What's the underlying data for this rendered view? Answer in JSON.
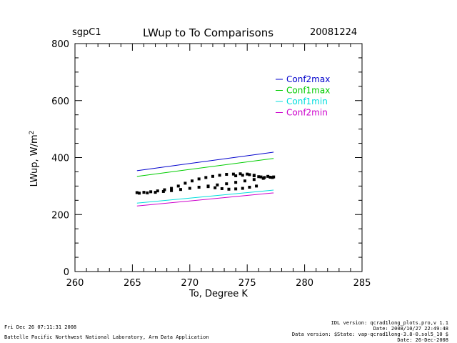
{
  "header": {
    "site": "sgpC1",
    "title": "LWup to To Comparisons",
    "date": "20081224"
  },
  "footer": {
    "run_timestamp": "Fri Dec 26 07:11:31 2008",
    "organization": "Battelle Pacific Northwest National Laboratory, Arm Data Application",
    "idl_version": "IDL version: qcrad1long_plots.pro,v 1.1",
    "idl_date": "Date: 2008/10/27 22:49:48",
    "data_version": "Data version: $State: vap-qcrad1long-3.8-0.sol5_10 $",
    "data_date": "Date: 26-Dec-2008"
  },
  "colors": {
    "Conf2max": "#0000cc",
    "Conf1max": "#00cc00",
    "Conf1min": "#00dddd",
    "Conf2min": "#cc00cc",
    "observations": "#000000"
  },
  "chart_data": {
    "type": "line",
    "title": "LWup to To Comparisons",
    "xlabel": "To, Degree K",
    "ylabel_main": "LWup, W/m",
    "ylabel_sup": "2",
    "xlim": [
      260,
      285
    ],
    "ylim": [
      0,
      800
    ],
    "x_ticks": [
      260,
      265,
      270,
      275,
      280,
      285
    ],
    "y_ticks": [
      0,
      200,
      400,
      600,
      800
    ],
    "legend_position": "top-right",
    "series": [
      {
        "name": "Conf2max",
        "x": [
          265.4,
          277.3
        ],
        "y": [
          354,
          419
        ]
      },
      {
        "name": "Conf1max",
        "x": [
          265.4,
          277.3
        ],
        "y": [
          334,
          397
        ]
      },
      {
        "name": "Conf1min",
        "x": [
          265.4,
          277.3
        ],
        "y": [
          240,
          286
        ]
      },
      {
        "name": "Conf2min",
        "x": [
          265.4,
          277.3
        ],
        "y": [
          230,
          276
        ]
      }
    ],
    "observations": {
      "type": "scatter",
      "points": [
        [
          265.4,
          277
        ],
        [
          266.0,
          278
        ],
        [
          266.6,
          280
        ],
        [
          267.2,
          283
        ],
        [
          267.8,
          287
        ],
        [
          268.4,
          292
        ],
        [
          269.0,
          300
        ],
        [
          269.6,
          310
        ],
        [
          270.2,
          318
        ],
        [
          270.8,
          325
        ],
        [
          271.4,
          330
        ],
        [
          272.0,
          334
        ],
        [
          272.6,
          338
        ],
        [
          273.2,
          341
        ],
        [
          273.8,
          342
        ],
        [
          274.4,
          343
        ],
        [
          275.0,
          342
        ],
        [
          275.6,
          338
        ],
        [
          276.0,
          333
        ],
        [
          276.5,
          330
        ],
        [
          277.0,
          331
        ],
        [
          277.3,
          332
        ],
        [
          265.6,
          275
        ],
        [
          266.3,
          276
        ],
        [
          267.0,
          278
        ],
        [
          267.7,
          281
        ],
        [
          268.4,
          284
        ],
        [
          269.2,
          288
        ],
        [
          270.0,
          292
        ],
        [
          270.8,
          296
        ],
        [
          271.6,
          300
        ],
        [
          272.4,
          304
        ],
        [
          273.2,
          308
        ],
        [
          274.0,
          313
        ],
        [
          274.8,
          318
        ],
        [
          275.6,
          323
        ],
        [
          276.4,
          327
        ],
        [
          277.2,
          330
        ],
        [
          271.6,
          298
        ],
        [
          272.2,
          294
        ],
        [
          272.8,
          291
        ],
        [
          273.4,
          289
        ],
        [
          274.0,
          290
        ],
        [
          274.6,
          292
        ],
        [
          275.2,
          296
        ],
        [
          275.8,
          300
        ],
        [
          274.0,
          336
        ],
        [
          274.6,
          338
        ],
        [
          275.2,
          340
        ],
        [
          275.6,
          336
        ],
        [
          276.2,
          332
        ],
        [
          276.8,
          334
        ]
      ]
    }
  }
}
